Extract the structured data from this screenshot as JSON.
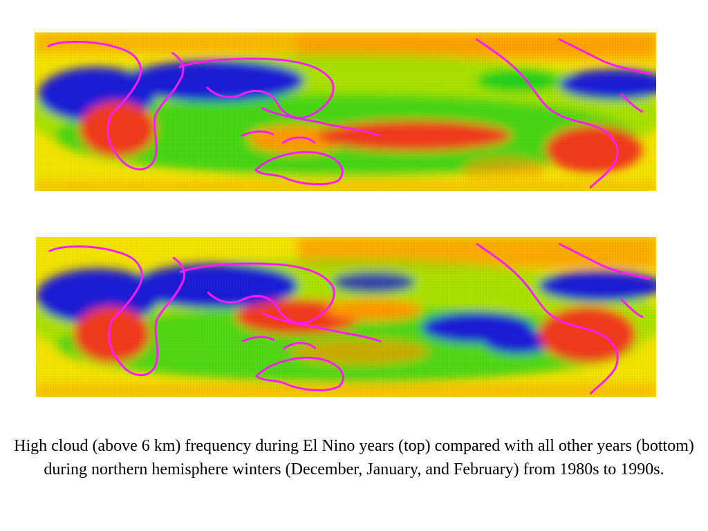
{
  "caption": "High cloud (above 6 km) frequency during El Nino years (top) compared with all other years (bottom) during northern hemisphere winters (December, January, and February) from 1980s to 1990s.",
  "maps": [
    {
      "id": "top",
      "description_key": "el-nino-years"
    },
    {
      "id": "bottom",
      "description_key": "all-other-years"
    }
  ],
  "colors": {
    "background_field": "#f4e400",
    "low_frequency": "#1a1ad6",
    "moderate_low": "#1fd11f",
    "moderate": "#7fe000",
    "high": "#ff9a00",
    "very_high": "#f23a1a",
    "coastline": "#ff1aff"
  }
}
